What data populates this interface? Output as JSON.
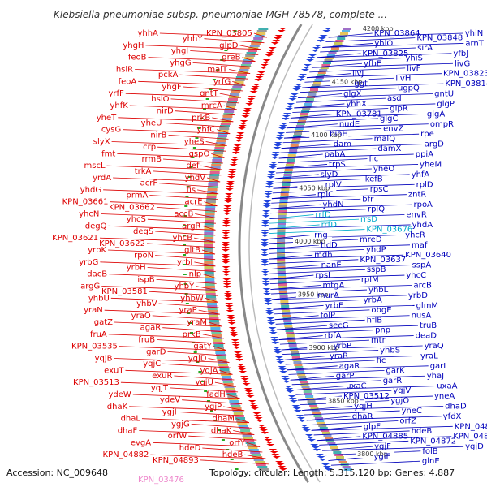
{
  "title": "Klebsiella pneumoniae subsp. pneumoniae MGH 78578, complete ...",
  "footer": {
    "accession": "Accession: NC_009648",
    "stats": "Topology: circular; Length: 5,315,120 bp; Genes: 4,887",
    "left_tag": "KPN_03476"
  },
  "colors": {
    "left_label": "#dd0000",
    "right_label": "#0000bb",
    "right_highlight": "#00aacc",
    "pink_label": "#ee88cc",
    "forward_arrows": "#ee0000",
    "reverse_arrows": "#2244dd",
    "backbone": "#888888",
    "tick_green": "#22aa22"
  },
  "kbp_ticks": [
    "4200 kbp",
    "4150 kbp",
    "4100 kbp",
    "4050 kbp",
    "4000 kbp",
    "3950 kbp",
    "3900 kbp",
    "3850 kbp",
    "3800 kbp"
  ],
  "left_labels": [
    "KPN_03805",
    "yhhY",
    "yhhA",
    "glpD",
    "yhgI",
    "yhgH",
    "greB",
    "yhgG",
    "feoB",
    "malT",
    "pckA",
    "hslR",
    "yrfG",
    "yhgF",
    "feoA",
    "gntT",
    "hslO",
    "yrfF",
    "mrcA",
    "nirD",
    "yhfK",
    "prkB",
    "yheU",
    "yheT",
    "yhfC",
    "nirB",
    "cysG",
    "yheS",
    "crp",
    "slyX",
    "gspO",
    "rrmB",
    "fmt",
    "def",
    "trkA",
    "mscL",
    "yhdV",
    "acrF",
    "yrdA",
    "fis",
    "prmA",
    "yhdG",
    "acrE",
    "KPN_03662",
    "KPN_03661",
    "accB",
    "yhcS",
    "yhcN",
    "argR",
    "degS",
    "degQ",
    "yhcB",
    "KPN_03622",
    "KPN_03621",
    "gltB",
    "rpoN",
    "yrbK",
    "yrbI",
    "yrbH",
    "yrbG",
    "nlp",
    "ispB",
    "dacB",
    "yhbY",
    "KPN_03581",
    "argG",
    "yhbW",
    "yhbV",
    "yhbU",
    "yraP",
    "yraO",
    "yraN",
    "yraM",
    "agaR",
    "gatZ",
    "prkB",
    "fruB",
    "fruA",
    "gatY",
    "garD",
    "KPN_03535",
    "yqjD",
    "yqjC",
    "yqjB",
    "yqjA",
    "exuR",
    "exuT",
    "yqjU",
    "yqjT",
    "KPN_03513",
    "fadH",
    "ydeV",
    "ydeW",
    "ygjP",
    "ygjI",
    "dhaK",
    "dhaM",
    "ygjG",
    "dhaL",
    "dhaK",
    "orfW",
    "dhaF",
    "orfY",
    "hdeD",
    "evgA",
    "hdeB",
    "KPN_04893",
    "KPN_04882"
  ],
  "right_labels": [
    "KPN_03864",
    "KPN_03848",
    "yhiN",
    "yhiO",
    "sirA",
    "arnT",
    "KPN_03825",
    "yhiS",
    "yfbJ",
    "yfbE",
    "livF",
    "livG",
    "livJ",
    "livH",
    "KPN_03823",
    "ggt",
    "ugpQ",
    "KPN_03814",
    "glgX",
    "asd",
    "gntU",
    "yhhX",
    "glpR",
    "glgP",
    "KPN_03781",
    "glgC",
    "glgA",
    "nudE",
    "envZ",
    "ompR",
    "bioH",
    "malQ",
    "rpe",
    "dam",
    "damX",
    "argD",
    "pabA",
    "fic",
    "ppiA",
    "trpS",
    "yheO",
    "yheM",
    "slyD",
    "kefB",
    "yhfA",
    "rplV",
    "rpsC",
    "rplD",
    "rplC",
    "bfr",
    "zntR",
    "yhdN",
    "rplQ",
    "rpoA",
    "rrfD",
    "rrsD",
    "envR",
    "rrfD",
    "KPN_03676",
    "yhdA",
    "rng",
    "mreD",
    "yhcR",
    "tldD",
    "yhdP",
    "maf",
    "mdh",
    "KPN_03637",
    "KPN_03640",
    "nanE",
    "sspB",
    "sspA",
    "rpsI",
    "rplM",
    "yhcC",
    "mtgA",
    "yhbL",
    "arcB",
    "murA",
    "yrbA",
    "yrbD",
    "yrbF",
    "obgE",
    "glmM",
    "folP",
    "hflB",
    "nusA",
    "secG",
    "pnp",
    "truB",
    "rbfA",
    "mtr",
    "deaD",
    "yrbP",
    "yhbS",
    "yraQ",
    "yraR",
    "fic",
    "yraL",
    "agaR",
    "garK",
    "garL",
    "garP",
    "garR",
    "yhaJ",
    "uxaC",
    "ygjV",
    "uxaA",
    "KPN_03512",
    "ygjO",
    "yneA",
    "yqjH",
    "yneC",
    "dhaD",
    "dhaR",
    "orfZ",
    "yfdX",
    "glpF",
    "hdeB",
    "KPN_04887",
    "KPN_04885",
    "KPN_04872",
    "KPN_04864",
    "ygjF",
    "folB",
    "ygjD",
    "ygiF",
    "glnE"
  ]
}
